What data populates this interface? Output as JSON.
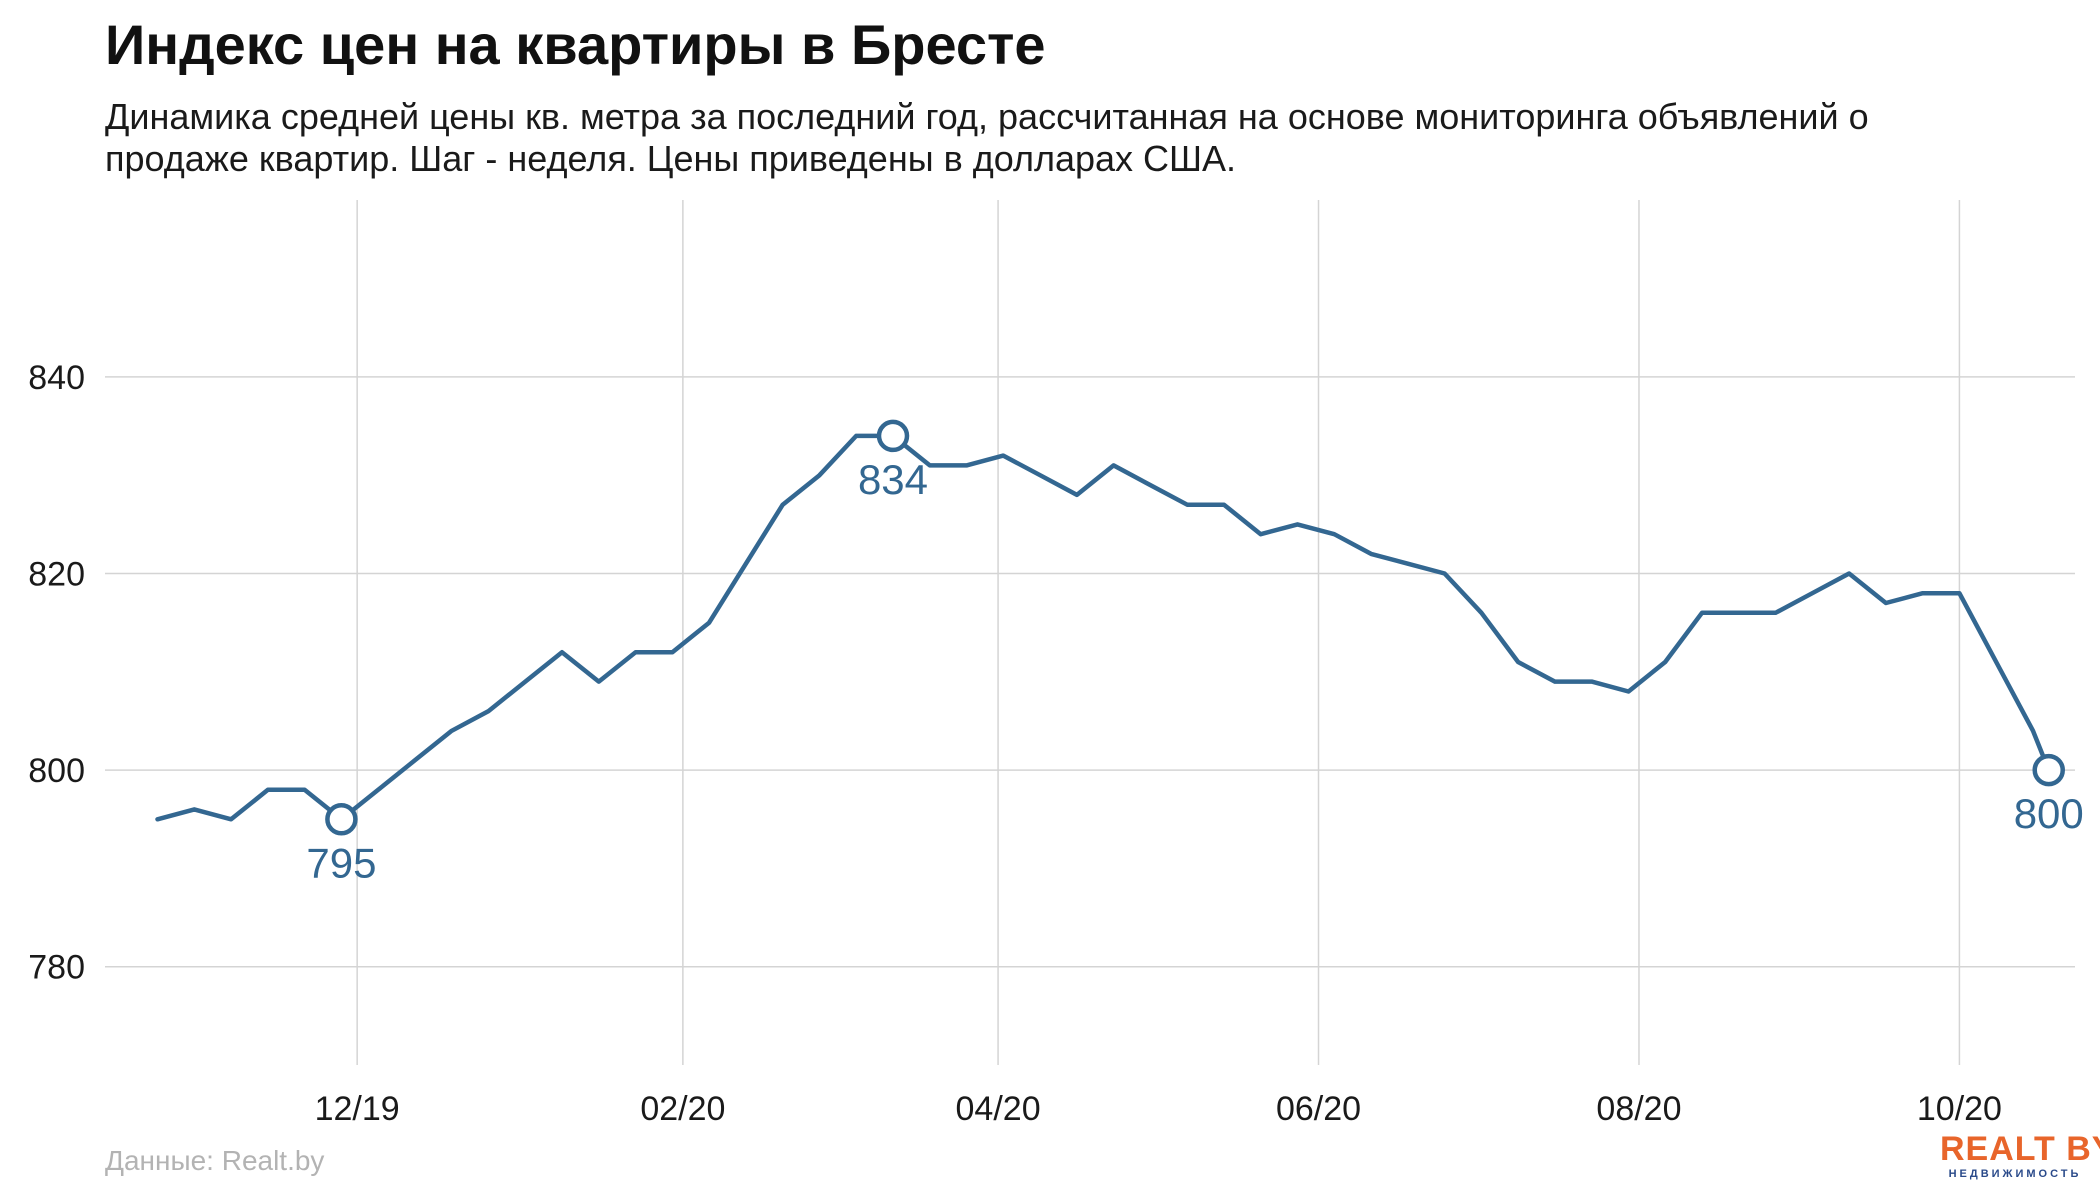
{
  "colors": {
    "line": "#336791",
    "grid": "#d4d4d4",
    "source": "#b3b3b3",
    "logo_accent": "#e8652b",
    "logo_sub": "#2a4a8a"
  },
  "footer": {
    "source": "Данные: Realt.by",
    "logo_main": "REALT BY",
    "logo_sub": "НЕДВИЖИМОСТЬ"
  },
  "chart_data": {
    "type": "line",
    "title": "Индекс цен на квартиры в Бресте",
    "subtitle": "Динамика средней цены кв. метра за последний год, рассчитанная на основе мониторинга объявлений о продаже квартир. Шаг - неделя. Цены приведены в долларах США.",
    "xlabel": "",
    "ylabel": "",
    "x_ticks": [
      {
        "date": "2019-12-01",
        "label": "12/19"
      },
      {
        "date": "2020-02-01",
        "label": "02/20"
      },
      {
        "date": "2020-04-01",
        "label": "04/20"
      },
      {
        "date": "2020-06-01",
        "label": "06/20"
      },
      {
        "date": "2020-08-01",
        "label": "08/20"
      },
      {
        "date": "2020-10-01",
        "label": "10/20"
      }
    ],
    "xlim": [
      "2019-10-14",
      "2020-10-23"
    ],
    "ylim": [
      770,
      858
    ],
    "y_ticks": [
      780,
      800,
      820,
      840
    ],
    "grid": true,
    "legend": "none",
    "series": [
      {
        "x": [
          "2019-10-24",
          "2019-10-31",
          "2019-11-07",
          "2019-11-14",
          "2019-11-21",
          "2019-11-28",
          "2019-12-05",
          "2019-12-12",
          "2019-12-19",
          "2019-12-26",
          "2020-01-02",
          "2020-01-09",
          "2020-01-16",
          "2020-01-23",
          "2020-01-30",
          "2020-02-06",
          "2020-02-13",
          "2020-02-20",
          "2020-02-27",
          "2020-03-05",
          "2020-03-12",
          "2020-03-19",
          "2020-03-26",
          "2020-04-02",
          "2020-04-09",
          "2020-04-16",
          "2020-04-23",
          "2020-04-30",
          "2020-05-07",
          "2020-05-14",
          "2020-05-21",
          "2020-05-28",
          "2020-06-04",
          "2020-06-11",
          "2020-06-18",
          "2020-06-25",
          "2020-07-02",
          "2020-07-09",
          "2020-07-16",
          "2020-07-23",
          "2020-07-30",
          "2020-08-06",
          "2020-08-13",
          "2020-08-20",
          "2020-08-27",
          "2020-09-03",
          "2020-09-10",
          "2020-09-17",
          "2020-09-24",
          "2020-10-01",
          "2020-10-08",
          "2020-10-15"
        ],
        "values": [
          795,
          796,
          795,
          798,
          798,
          795,
          798,
          801,
          804,
          806,
          809,
          812,
          809,
          812,
          812,
          815,
          821,
          827,
          830,
          834,
          834,
          831,
          831,
          832,
          830,
          828,
          831,
          829,
          827,
          827,
          824,
          825,
          824,
          822,
          821,
          820,
          816,
          811,
          809,
          809,
          808,
          811,
          816,
          816,
          816,
          818,
          820,
          817,
          818,
          818,
          811,
          804
        ]
      }
    ],
    "highlighted_points": [
      {
        "date": "2019-11-28",
        "value": 795,
        "label": "795"
      },
      {
        "date": "2020-03-12",
        "value": 834,
        "label": "834"
      },
      {
        "date": "2020-10-18",
        "value": 800,
        "label": "800"
      }
    ]
  }
}
